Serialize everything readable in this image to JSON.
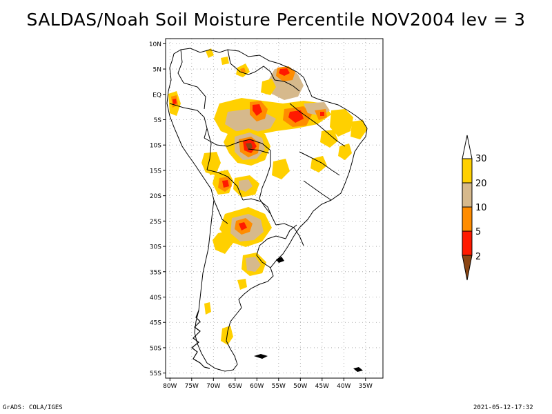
{
  "title": "SALDAS/Noah Soil Moisture Percentile NOV2004 lev = 3",
  "footer": {
    "left": "GrADS: COLA/IGES",
    "right": "2021-05-12-17:32"
  },
  "map": {
    "lon_range": [
      -81,
      -31
    ],
    "lat_range": [
      -56,
      11
    ],
    "lon_ticks": [
      {
        "value": -80,
        "label": "80W"
      },
      {
        "value": -75,
        "label": "75W"
      },
      {
        "value": -70,
        "label": "70W"
      },
      {
        "value": -65,
        "label": "65W"
      },
      {
        "value": -60,
        "label": "60W"
      },
      {
        "value": -55,
        "label": "55W"
      },
      {
        "value": -50,
        "label": "50W"
      },
      {
        "value": -45,
        "label": "45W"
      },
      {
        "value": -40,
        "label": "40W"
      },
      {
        "value": -35,
        "label": "35W"
      }
    ],
    "lat_ticks": [
      {
        "value": 10,
        "label": "10N"
      },
      {
        "value": 5,
        "label": "5N"
      },
      {
        "value": 0,
        "label": "EQ"
      },
      {
        "value": -5,
        "label": "5S"
      },
      {
        "value": -10,
        "label": "10S"
      },
      {
        "value": -15,
        "label": "15S"
      },
      {
        "value": -20,
        "label": "20S"
      },
      {
        "value": -25,
        "label": "25S"
      },
      {
        "value": -30,
        "label": "30S"
      },
      {
        "value": -35,
        "label": "35S"
      },
      {
        "value": -40,
        "label": "40S"
      },
      {
        "value": -45,
        "label": "45S"
      },
      {
        "value": -50,
        "label": "50S"
      },
      {
        "value": -55,
        "label": "55S"
      }
    ]
  },
  "legend": {
    "labels": [
      "30",
      "20",
      "10",
      "5",
      "2"
    ],
    "colors": {
      "above_30": "#ffffff",
      "20_30": "#ffd000",
      "10_20": "#d6b98c",
      "5_10": "#ff8c00",
      "2_5": "#ff1a00",
      "below_2": "#8b4513"
    }
  }
}
